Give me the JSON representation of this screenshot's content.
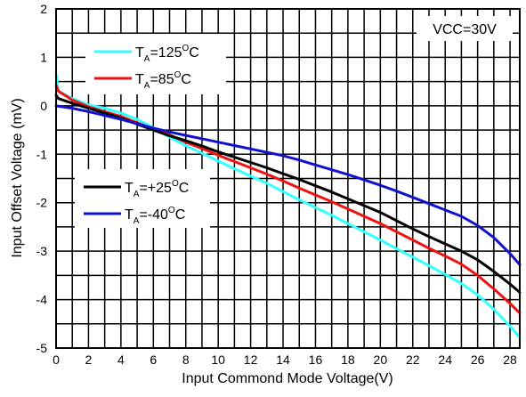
{
  "chart_data": {
    "type": "line",
    "title": "",
    "xlabel": "Input Commond Mode Voltage(V)",
    "ylabel": "Input Offset Voltage (mV)",
    "xlim": [
      0,
      28.6
    ],
    "ylim": [
      -5,
      2
    ],
    "xticks": [
      0,
      2,
      4,
      6,
      8,
      10,
      12,
      14,
      16,
      18,
      20,
      22,
      24,
      26,
      28
    ],
    "yticks": [
      -5,
      -4,
      -3,
      -2,
      -1,
      0,
      1,
      2
    ],
    "grid": true,
    "annotation": "VCC=30V",
    "legend_groups": [
      {
        "placement": "upper-left",
        "series": [
          "t125",
          "t85"
        ]
      },
      {
        "placement": "middle-left",
        "series": [
          "t25",
          "tm40"
        ]
      }
    ],
    "series": [
      {
        "id": "t125",
        "label_main": "T",
        "label_sub": "A",
        "label_value": "=125",
        "label_sup": "O",
        "label_unit": "C",
        "color": "#33ffff",
        "points": [
          [
            0,
            0.65
          ],
          [
            0.15,
            0.3
          ],
          [
            1,
            0.15
          ],
          [
            2,
            0.02
          ],
          [
            3,
            -0.05
          ],
          [
            4,
            -0.15
          ],
          [
            5,
            -0.28
          ],
          [
            6,
            -0.45
          ],
          [
            7,
            -0.65
          ],
          [
            8,
            -0.82
          ],
          [
            9,
            -0.98
          ],
          [
            10,
            -1.14
          ],
          [
            11,
            -1.3
          ],
          [
            12,
            -1.45
          ],
          [
            13,
            -1.6
          ],
          [
            14,
            -1.77
          ],
          [
            15,
            -1.94
          ],
          [
            16,
            -2.1
          ],
          [
            17,
            -2.26
          ],
          [
            18,
            -2.43
          ],
          [
            19,
            -2.6
          ],
          [
            20,
            -2.77
          ],
          [
            21,
            -2.95
          ],
          [
            22,
            -3.12
          ],
          [
            23,
            -3.3
          ],
          [
            24,
            -3.48
          ],
          [
            25,
            -3.67
          ],
          [
            26,
            -3.9
          ],
          [
            27,
            -4.2
          ],
          [
            28,
            -4.55
          ],
          [
            28.6,
            -4.78
          ]
        ]
      },
      {
        "id": "t85",
        "label_main": "T",
        "label_sub": "A",
        "label_value": "=85",
        "label_sup": "O",
        "label_unit": "C",
        "color": "#ee1111",
        "points": [
          [
            0,
            0.42
          ],
          [
            0.15,
            0.3
          ],
          [
            1,
            0.12
          ],
          [
            2,
            -0.02
          ],
          [
            3,
            -0.12
          ],
          [
            4,
            -0.22
          ],
          [
            5,
            -0.35
          ],
          [
            6,
            -0.48
          ],
          [
            7,
            -0.6
          ],
          [
            8,
            -0.75
          ],
          [
            9,
            -0.88
          ],
          [
            10,
            -1.02
          ],
          [
            11,
            -1.15
          ],
          [
            12,
            -1.28
          ],
          [
            13,
            -1.41
          ],
          [
            14,
            -1.55
          ],
          [
            15,
            -1.7
          ],
          [
            16,
            -1.84
          ],
          [
            17,
            -1.98
          ],
          [
            18,
            -2.13
          ],
          [
            19,
            -2.28
          ],
          [
            20,
            -2.43
          ],
          [
            21,
            -2.6
          ],
          [
            22,
            -2.77
          ],
          [
            23,
            -2.94
          ],
          [
            24,
            -3.1
          ],
          [
            25,
            -3.27
          ],
          [
            26,
            -3.5
          ],
          [
            27,
            -3.78
          ],
          [
            28,
            -4.08
          ],
          [
            28.6,
            -4.28
          ]
        ]
      },
      {
        "id": "t25",
        "label_main": "T",
        "label_sub": "A",
        "label_value": "=+25",
        "label_sup": "O",
        "label_unit": "C",
        "color": "#000000",
        "points": [
          [
            0,
            0.22
          ],
          [
            0.15,
            0.15
          ],
          [
            1,
            0.05
          ],
          [
            2,
            -0.05
          ],
          [
            3,
            -0.15
          ],
          [
            4,
            -0.25
          ],
          [
            5,
            -0.38
          ],
          [
            6,
            -0.5
          ],
          [
            7,
            -0.62
          ],
          [
            8,
            -0.72
          ],
          [
            9,
            -0.83
          ],
          [
            10,
            -0.95
          ],
          [
            11,
            -1.06
          ],
          [
            12,
            -1.17
          ],
          [
            13,
            -1.28
          ],
          [
            14,
            -1.4
          ],
          [
            15,
            -1.52
          ],
          [
            16,
            -1.65
          ],
          [
            17,
            -1.78
          ],
          [
            18,
            -1.92
          ],
          [
            19,
            -2.06
          ],
          [
            20,
            -2.2
          ],
          [
            21,
            -2.37
          ],
          [
            22,
            -2.54
          ],
          [
            23,
            -2.7
          ],
          [
            24,
            -2.85
          ],
          [
            25,
            -3.0
          ],
          [
            26,
            -3.18
          ],
          [
            27,
            -3.42
          ],
          [
            28,
            -3.68
          ],
          [
            28.6,
            -3.85
          ]
        ]
      },
      {
        "id": "tm40",
        "label_main": "T",
        "label_sub": "A",
        "label_value": "=-40",
        "label_sup": "O",
        "label_unit": "C",
        "color": "#1111cc",
        "points": [
          [
            0,
            0
          ],
          [
            1,
            -0.05
          ],
          [
            2,
            -0.12
          ],
          [
            3,
            -0.2
          ],
          [
            4,
            -0.28
          ],
          [
            5,
            -0.37
          ],
          [
            6,
            -0.46
          ],
          [
            7,
            -0.54
          ],
          [
            8,
            -0.61
          ],
          [
            9,
            -0.68
          ],
          [
            10,
            -0.75
          ],
          [
            11,
            -0.82
          ],
          [
            12,
            -0.89
          ],
          [
            13,
            -0.96
          ],
          [
            14,
            -1.03
          ],
          [
            15,
            -1.12
          ],
          [
            16,
            -1.22
          ],
          [
            17,
            -1.32
          ],
          [
            18,
            -1.42
          ],
          [
            19,
            -1.53
          ],
          [
            20,
            -1.64
          ],
          [
            21,
            -1.76
          ],
          [
            22,
            -1.89
          ],
          [
            23,
            -2.02
          ],
          [
            24,
            -2.15
          ],
          [
            25,
            -2.28
          ],
          [
            26,
            -2.47
          ],
          [
            27,
            -2.72
          ],
          [
            28,
            -3.05
          ],
          [
            28.6,
            -3.28
          ]
        ]
      }
    ]
  }
}
